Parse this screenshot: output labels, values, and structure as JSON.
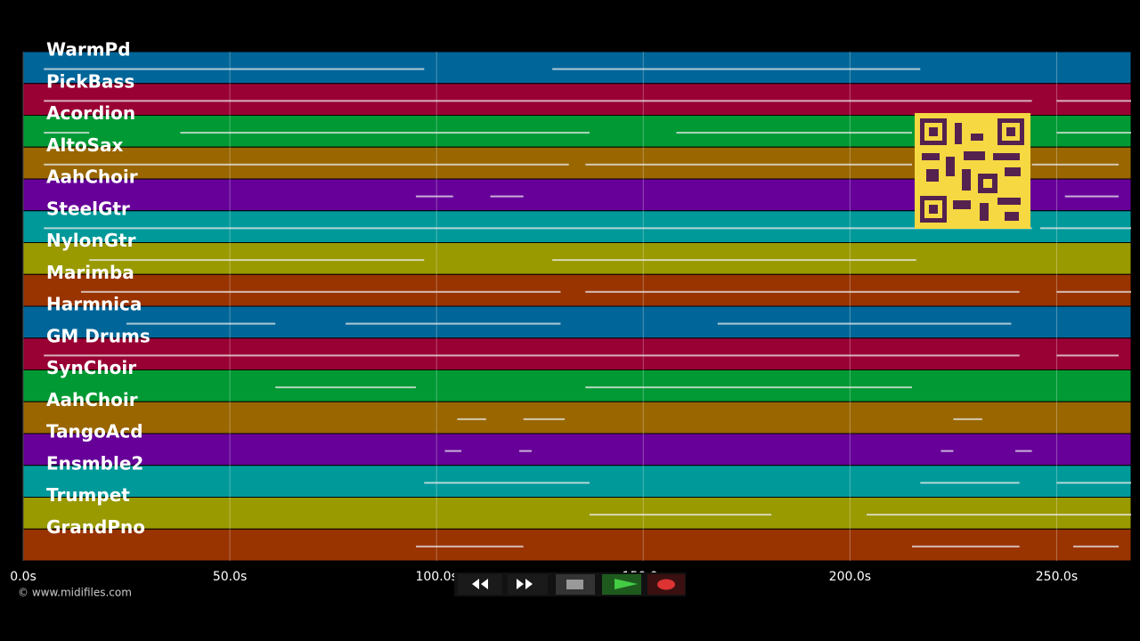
{
  "timeline": {
    "xlim": [
      0,
      268
    ],
    "xticks": [
      {
        "value": 0,
        "label": "0.0s"
      },
      {
        "value": 50,
        "label": "50.0s"
      },
      {
        "value": 100,
        "label": "100.0s"
      },
      {
        "value": 150,
        "label": "150.0s"
      },
      {
        "value": 200,
        "label": "200.0s"
      },
      {
        "value": 250,
        "label": "250.0s"
      }
    ],
    "tracks": [
      {
        "name": "WarmPd",
        "color": "#006699",
        "notes": [
          [
            5,
            97
          ],
          [
            128,
            217
          ]
        ]
      },
      {
        "name": "PickBass",
        "color": "#990033",
        "notes": [
          [
            5,
            244
          ],
          [
            250,
            268
          ]
        ]
      },
      {
        "name": "Acordion",
        "color": "#009933",
        "notes": [
          [
            5,
            16
          ],
          [
            38,
            137
          ],
          [
            158,
            215
          ],
          [
            250,
            268
          ]
        ]
      },
      {
        "name": "AltoSax",
        "color": "#996600",
        "notes": [
          [
            5,
            132
          ],
          [
            136,
            215
          ],
          [
            244,
            265
          ]
        ]
      },
      {
        "name": "AahChoir",
        "color": "#660099",
        "notes": [
          [
            95,
            104
          ],
          [
            113,
            121
          ],
          [
            252,
            265
          ]
        ]
      },
      {
        "name": "SteelGtr",
        "color": "#009999",
        "notes": [
          [
            5,
            244
          ],
          [
            246,
            268
          ]
        ]
      },
      {
        "name": "NylonGtr",
        "color": "#999900",
        "notes": [
          [
            16,
            97
          ],
          [
            128,
            216
          ]
        ]
      },
      {
        "name": "Marimba",
        "color": "#993300",
        "notes": [
          [
            14,
            130
          ],
          [
            136,
            241
          ],
          [
            250,
            268
          ]
        ]
      },
      {
        "name": "Harmnica",
        "color": "#006699",
        "notes": [
          [
            25,
            61
          ],
          [
            78,
            130
          ],
          [
            168,
            239
          ]
        ]
      },
      {
        "name": "GM Drums",
        "color": "#990033",
        "notes": [
          [
            5,
            241
          ],
          [
            250,
            265
          ]
        ]
      },
      {
        "name": "SynChoir",
        "color": "#009933",
        "notes": [
          [
            61,
            95
          ],
          [
            136,
            215
          ]
        ]
      },
      {
        "name": "AahChoir",
        "color": "#996600",
        "notes": [
          [
            105,
            112
          ],
          [
            121,
            131
          ],
          [
            225,
            232
          ]
        ]
      },
      {
        "name": "TangoAcd",
        "color": "#660099",
        "notes": [
          [
            102,
            106
          ],
          [
            120,
            123
          ],
          [
            222,
            225
          ],
          [
            240,
            244
          ]
        ]
      },
      {
        "name": "Ensmble2",
        "color": "#009999",
        "notes": [
          [
            97,
            137
          ],
          [
            217,
            241
          ],
          [
            250,
            268
          ]
        ]
      },
      {
        "name": "Trumpet",
        "color": "#999900",
        "notes": [
          [
            137,
            181
          ],
          [
            204,
            268
          ]
        ]
      },
      {
        "name": "GrandPno",
        "color": "#993300",
        "notes": [
          [
            95,
            121
          ],
          [
            215,
            241
          ],
          [
            254,
            265
          ]
        ]
      }
    ]
  },
  "footer": {
    "copyright": "© www.midifiles.com"
  }
}
